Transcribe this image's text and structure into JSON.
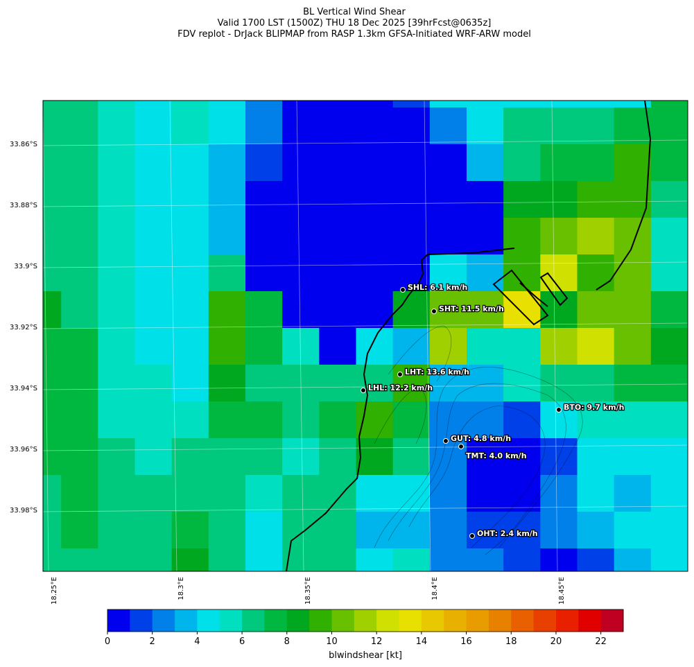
{
  "title_lines": [
    "BL Vertical Wind Shear",
    "Valid 1700 LST (1500Z) THU 18 Dec 2025 [39hrFcst@0635z]",
    "FDV replot - DrJack BLIPMAP from RASP 1.3km GFSA-Initiated WRF-ARW model"
  ],
  "map": {
    "lat_labels": [
      "33.86°S",
      "33.88°S",
      "33.9°S",
      "33.92°S",
      "33.94°S",
      "33.96°S",
      "33.98°S"
    ],
    "lon_labels": [
      "18.25°E",
      "18.3°E",
      "18.35°E",
      "18.4°E",
      "18.45°E"
    ],
    "grid_values": [
      [
        6.5,
        6.5,
        5.5,
        4.5,
        5.5,
        4.5,
        2.5,
        0.5,
        0.5,
        0.5,
        1.5,
        4.5,
        4.5,
        4.5,
        4.5,
        4.5,
        4.5,
        7.5
      ],
      [
        6.5,
        6.5,
        5.5,
        4.5,
        5.5,
        4.5,
        2.5,
        0.5,
        0.5,
        0.5,
        0.5,
        2.5,
        4.5,
        6.5,
        6.5,
        6.5,
        7.5,
        7.5
      ],
      [
        6.5,
        6.5,
        5.5,
        4.5,
        4.5,
        3.5,
        1.5,
        0.5,
        0.5,
        0.5,
        0.5,
        0.5,
        3.5,
        6.5,
        7.5,
        7.5,
        9.5,
        7.5
      ],
      [
        6.5,
        6.5,
        5.5,
        4.5,
        4.5,
        3.5,
        0.5,
        0.5,
        0.5,
        0.5,
        0.5,
        0.5,
        0.5,
        8.5,
        8.5,
        9.5,
        9.5,
        6.5
      ],
      [
        6.5,
        6.5,
        5.5,
        4.5,
        4.5,
        3.5,
        0.5,
        0.5,
        0.5,
        0.5,
        0.5,
        0.5,
        0.5,
        9.5,
        10.5,
        11.5,
        10.5,
        5.5
      ],
      [
        6.5,
        6.5,
        5.5,
        4.5,
        4.5,
        6.5,
        0.5,
        0.5,
        0.5,
        0.5,
        0.5,
        4.5,
        3.5,
        9.5,
        12.5,
        9.5,
        10.5,
        5.5
      ],
      [
        8.5,
        6.5,
        5.5,
        4.5,
        4.5,
        9.5,
        7.5,
        0.5,
        0.5,
        0.5,
        8.5,
        10.5,
        10.5,
        13.5,
        8.5,
        10.5,
        10.5,
        7.5
      ],
      [
        7.5,
        7.5,
        5.5,
        4.5,
        4.5,
        9.5,
        7.5,
        5.5,
        0.5,
        4.5,
        3.5,
        11.5,
        5.5,
        5.5,
        11.5,
        12.5,
        10.5,
        8.5
      ],
      [
        7.5,
        7.5,
        5.5,
        5.5,
        4.5,
        8.5,
        6.5,
        6.5,
        6.5,
        6.5,
        9.5,
        3.5,
        3.5,
        5.5,
        6.5,
        6.5,
        7.5,
        7.5
      ],
      [
        7.5,
        7.5,
        5.5,
        5.5,
        5.5,
        7.5,
        7.5,
        6.5,
        7.5,
        9.5,
        7.5,
        2.5,
        2.5,
        1.5,
        4.5,
        5.5,
        5.5,
        5.5
      ],
      [
        7.5,
        7.5,
        6.5,
        5.5,
        6.5,
        6.5,
        6.5,
        5.5,
        6.5,
        8.5,
        6.5,
        2.5,
        0.5,
        0.5,
        1.5,
        4.5,
        4.5,
        4.5
      ],
      [
        6.5,
        7.5,
        6.5,
        6.5,
        6.5,
        6.5,
        5.5,
        6.5,
        6.5,
        4.5,
        4.5,
        2.5,
        0.5,
        0.5,
        2.5,
        4.5,
        3.5,
        4.5
      ],
      [
        6.5,
        7.5,
        6.5,
        6.5,
        7.5,
        6.5,
        4.5,
        6.5,
        6.5,
        3.5,
        3.5,
        2.5,
        1.5,
        1.5,
        2.5,
        3.5,
        4.5,
        4.5
      ],
      [
        6.5,
        6.5,
        6.5,
        6.5,
        8.5,
        6.5,
        4.5,
        6.5,
        6.5,
        4.5,
        5.5,
        2.5,
        2.5,
        1.5,
        0.5,
        1.5,
        3.5,
        4.5
      ]
    ],
    "stations": [
      "SHL: 6.1 km/h",
      "SHT: 11.5 km/h",
      "LHT: 13.6 km/h",
      "LHL: 12.2 km/h",
      "BTO: 9.7 km/h",
      "GUT: 4.8 km/h",
      "TMT: 4.0 km/h",
      "OHT: 2.4 km/h"
    ]
  },
  "colorbar": {
    "bounds": [
      0,
      1,
      2,
      3,
      4,
      5,
      6,
      7,
      8,
      9,
      10,
      11,
      12,
      13,
      14,
      15,
      16,
      17,
      18,
      19,
      20,
      21,
      22,
      23
    ],
    "colors": [
      "#0000ee",
      "#0040e8",
      "#0080e8",
      "#00b4ec",
      "#00e0e8",
      "#00e0c0",
      "#00c87c",
      "#00b840",
      "#00a820",
      "#30b000",
      "#68c000",
      "#a0d000",
      "#d0e000",
      "#e8e000",
      "#e8c800",
      "#e8b000",
      "#e89c00",
      "#e88000",
      "#e86000",
      "#e84000",
      "#e82000",
      "#e00000",
      "#c00020"
    ],
    "ticks": [
      0,
      2,
      4,
      6,
      8,
      10,
      12,
      14,
      16,
      18,
      20,
      22
    ],
    "label": "blwindshear [kt]"
  }
}
